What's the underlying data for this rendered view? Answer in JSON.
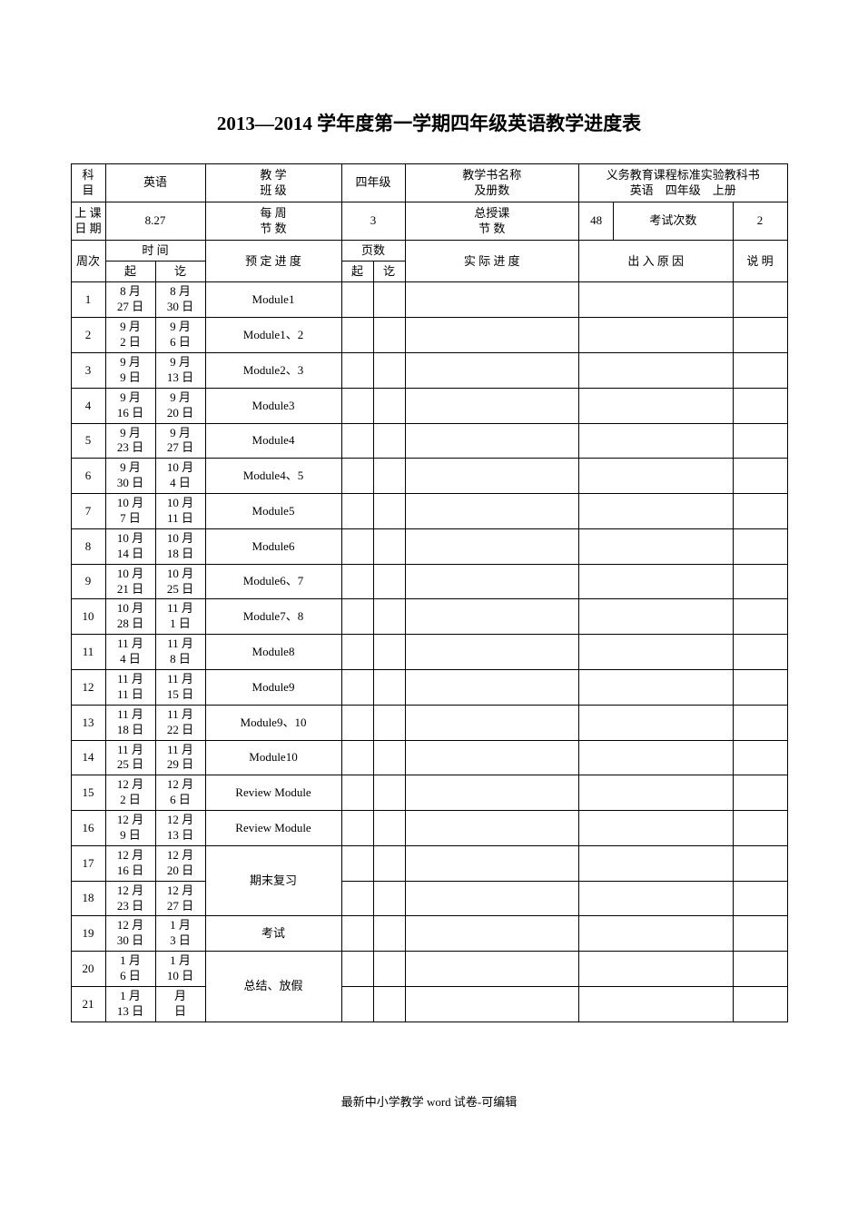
{
  "title": "2013—2014 学年度第一学期四年级英语教学进度表",
  "footer": "最新中小学教学 word 试卷-可编辑",
  "header": {
    "subject_label": "科　目",
    "subject_value": "英语",
    "class_label_line1": "教 学",
    "class_label_line2": "班 级",
    "class_value": "四年级",
    "book_label_line1": "教学书名称",
    "book_label_line2": "及册数",
    "book_value_line1": "义务教育课程标准实验教科书",
    "book_value_line2": "英语　四年级　上册",
    "start_date_label_line1": "上 课",
    "start_date_label_line2": "日 期",
    "start_date_value": "8.27",
    "weekly_label_line1": "每 周",
    "weekly_label_line2": "节 数",
    "weekly_value": "3",
    "total_label_line1": "总授课",
    "total_label_line2": "节 数",
    "total_value": "48",
    "exam_count_label": "考试次数",
    "exam_count_value": "2",
    "week_col": "周次",
    "time_col": "时 间",
    "time_start": "起",
    "time_end": "讫",
    "planned_col": "预 定 进 度",
    "page_col": "页数",
    "page_start": "起",
    "page_end": "讫",
    "actual_col": "实 际 进 度",
    "reason_col": "出 入 原 因",
    "note_col": "说 明"
  },
  "rows": [
    {
      "week": "1",
      "start": "8 月27 日",
      "end": "8 月30 日",
      "topic": "Module1"
    },
    {
      "week": "2",
      "start": "9 月2 日",
      "end": "9 月6 日",
      "topic": "Module1、2"
    },
    {
      "week": "3",
      "start": "9 月9 日",
      "end": "9 月13 日",
      "topic": "Module2、3"
    },
    {
      "week": "4",
      "start": "9 月16 日",
      "end": "9 月20 日",
      "topic": "Module3"
    },
    {
      "week": "5",
      "start": "9 月23 日",
      "end": "9 月27 日",
      "topic": "Module4"
    },
    {
      "week": "6",
      "start": "9 月30 日",
      "end": "10 月4 日",
      "topic": "Module4、5"
    },
    {
      "week": "7",
      "start": "10 月7 日",
      "end": "10 月11 日",
      "topic": "Module5"
    },
    {
      "week": "8",
      "start": "10 月14 日",
      "end": "10 月18 日",
      "topic": "Module6"
    },
    {
      "week": "9",
      "start": "10 月21 日",
      "end": "10 月25 日",
      "topic": "Module6、7"
    },
    {
      "week": "10",
      "start": "10 月28 日",
      "end": "11 月1 日",
      "topic": "Module7、8"
    },
    {
      "week": "11",
      "start": "11 月4 日",
      "end": "11 月8 日",
      "topic": "Module8"
    },
    {
      "week": "12",
      "start": "11 月11 日",
      "end": "11 月15 日",
      "topic": "Module9"
    },
    {
      "week": "13",
      "start": "11 月18 日",
      "end": "11 月22 日",
      "topic": "Module9、10"
    },
    {
      "week": "14",
      "start": "11 月25 日",
      "end": "11 月29 日",
      "topic": "Module10"
    },
    {
      "week": "15",
      "start": "12 月2 日",
      "end": "12 月6 日",
      "topic": "Review Module"
    },
    {
      "week": "16",
      "start": "12 月9 日",
      "end": "12 月13 日",
      "topic": "Review Module"
    },
    {
      "week": "17",
      "start": "12 月16 日",
      "end": "12 月20 日",
      "topic": "期末复习",
      "merge": 2
    },
    {
      "week": "18",
      "start": "12 月23 日",
      "end": "12 月27 日",
      "topic": ""
    },
    {
      "week": "19",
      "start": "12 月30 日",
      "end": "1 月3 日",
      "topic": "考试"
    },
    {
      "week": "20",
      "start": "1 月6 日",
      "end": "1 月10 日",
      "topic": "总结、放假",
      "merge": 2
    },
    {
      "week": "21",
      "start": "1 月13 日",
      "end": "月日",
      "topic": ""
    }
  ]
}
